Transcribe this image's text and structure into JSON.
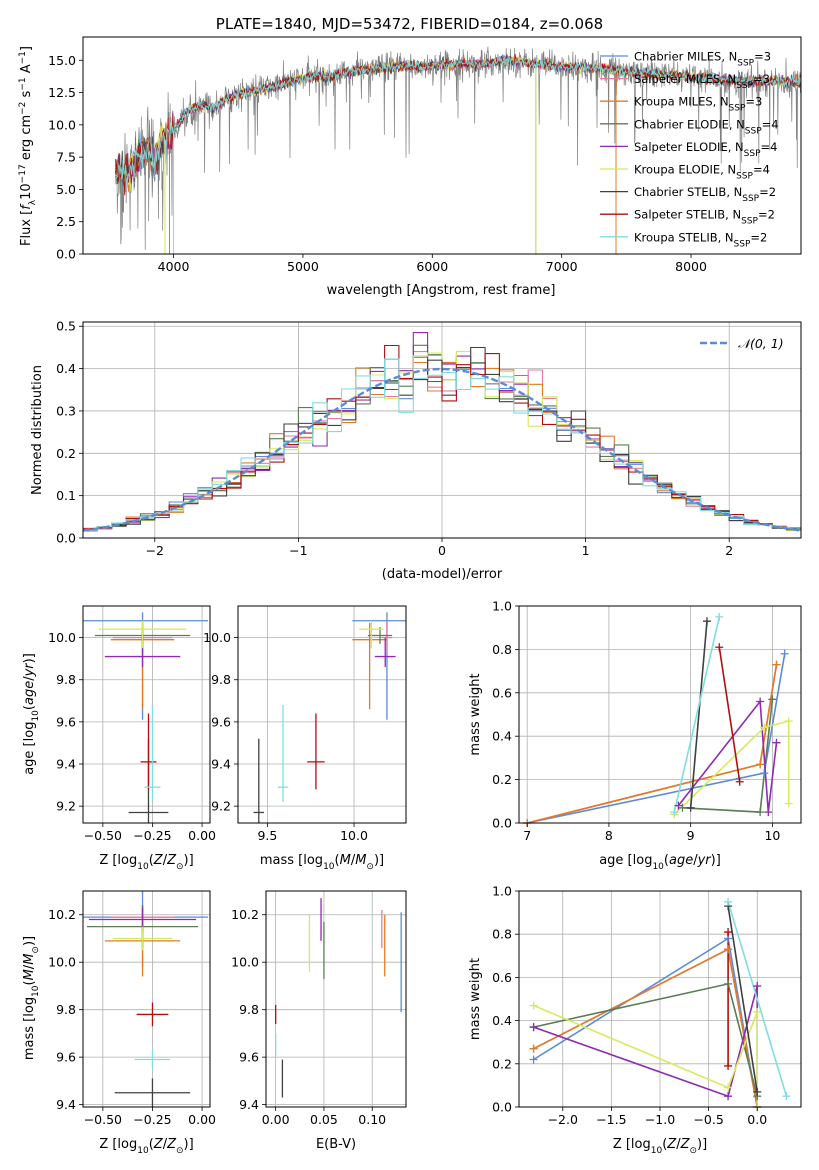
{
  "figure_title": "PLATE=1840, MJD=53472, FIBERID=0184, z=0.068",
  "series_colors": {
    "chabrier_miles": "#5b8bd6",
    "salpeter_miles": "#e879a0",
    "kroupa_miles": "#e07b28",
    "chabrier_elodie": "#5a7d55",
    "salpeter_elodie": "#8e2bb0",
    "kroupa_elodie": "#d4ec5c",
    "chabrier_stelib": "#404040",
    "salpeter_stelib": "#b10e0e",
    "kroupa_stelib": "#7fdde0",
    "observed": "#808080"
  },
  "chart_data": [
    {
      "id": "spectrum",
      "type": "line",
      "xlabel": "wavelength [Angstrom, rest frame]",
      "ylabel": "Flux [f_λ 10^-17 erg cm^-2 s^-1 A^-1]",
      "xlim": [
        3300,
        8850
      ],
      "ylim": [
        0,
        16.8
      ],
      "xticks": [
        4000,
        5000,
        6000,
        7000,
        8000
      ],
      "yticks": [
        0.0,
        2.5,
        5.0,
        7.5,
        10.0,
        12.5,
        15.0
      ],
      "legend_position": "right",
      "legend": [
        {
          "label": "Chabrier MILES, N_SSP=3",
          "color_key": "chabrier_miles"
        },
        {
          "label": "Salpeter MILES, N_SSP=3",
          "color_key": "salpeter_miles"
        },
        {
          "label": "Kroupa MILES, N_SSP=3",
          "color_key": "kroupa_miles"
        },
        {
          "label": "Chabrier ELODIE, N_SSP=4",
          "color_key": "chabrier_elodie"
        },
        {
          "label": "Salpeter ELODIE, N_SSP=4",
          "color_key": "salpeter_elodie"
        },
        {
          "label": "Kroupa ELODIE, N_SSP=4",
          "color_key": "kroupa_elodie"
        },
        {
          "label": "Chabrier STELIB, N_SSP=2",
          "color_key": "chabrier_stelib"
        },
        {
          "label": "Salpeter STELIB, N_SSP=2",
          "color_key": "salpeter_stelib"
        },
        {
          "label": "Kroupa STELIB, N_SSP=2",
          "color_key": "kroupa_stelib"
        }
      ],
      "continuum": [
        [
          3550,
          6.5
        ],
        [
          3650,
          6.0
        ],
        [
          3750,
          7.8
        ],
        [
          3800,
          8.0
        ],
        [
          3850,
          7.0
        ],
        [
          3900,
          8.5
        ],
        [
          3950,
          9.0
        ],
        [
          4000,
          9.5
        ],
        [
          4100,
          11.0
        ],
        [
          4200,
          11.5
        ],
        [
          4300,
          11.3
        ],
        [
          4400,
          12.0
        ],
        [
          4500,
          12.4
        ],
        [
          4600,
          12.6
        ],
        [
          4700,
          12.8
        ],
        [
          4800,
          13.0
        ],
        [
          4900,
          13.4
        ],
        [
          5000,
          13.6
        ],
        [
          5100,
          13.8
        ],
        [
          5200,
          13.7
        ],
        [
          5300,
          14.0
        ],
        [
          5400,
          14.2
        ],
        [
          5500,
          14.3
        ],
        [
          5600,
          14.4
        ],
        [
          5700,
          14.5
        ],
        [
          5800,
          14.6
        ],
        [
          5900,
          14.5
        ],
        [
          6000,
          14.6
        ],
        [
          6200,
          14.7
        ],
        [
          6400,
          14.7
        ],
        [
          6563,
          15.0
        ],
        [
          6700,
          14.8
        ],
        [
          7000,
          14.5
        ],
        [
          7200,
          14.4
        ],
        [
          7400,
          14.3
        ],
        [
          7600,
          14.0
        ],
        [
          7800,
          13.8
        ],
        [
          8000,
          13.7
        ],
        [
          8200,
          13.5
        ],
        [
          8400,
          13.4
        ],
        [
          8850,
          13.3
        ]
      ],
      "observed_dips": [
        [
          3934,
          0
        ],
        [
          3969,
          0
        ],
        [
          6800,
          0
        ],
        [
          7420,
          0
        ]
      ]
    },
    {
      "id": "residual_hist",
      "type": "bar",
      "xlabel": "(data-model)/error",
      "ylabel": "Normed distribution",
      "xlim": [
        -2.5,
        2.5
      ],
      "ylim": [
        0,
        0.51
      ],
      "xticks": [
        -2,
        -1,
        0,
        1,
        2
      ],
      "yticks": [
        0.0,
        0.1,
        0.2,
        0.3,
        0.4,
        0.5
      ],
      "bin_width": 0.1,
      "legend_position": "top-right",
      "legend_label": "𝒩(0, 1)",
      "reference_curve": "gaussian mean 0 sigma 1",
      "series_peaks": {
        "salpeter_elodie": 0.485,
        "salpeter_miles": 0.44,
        "chabrier_elodie": 0.455,
        "kroupa_elodie": 0.43
      }
    },
    {
      "id": "age_vs_Z",
      "type": "scatter",
      "xlabel": "Z [log10(Z/Z_⊙)]",
      "ylabel": "age  [log10(age/yr)]",
      "xlim": [
        -0.6,
        0.04
      ],
      "ylim": [
        9.12,
        10.15
      ],
      "xticks": [
        -0.5,
        -0.25,
        0.0
      ],
      "xticklabels": [
        "−0.50",
        "−0.25",
        "0.00"
      ],
      "yticks": [
        9.2,
        9.4,
        9.6,
        9.8,
        10.0
      ],
      "points": [
        {
          "key": "chabrier_miles",
          "x": -0.3,
          "y": 10.08,
          "xerr": 0.33,
          "yerr": [
            0.47,
            0.04
          ]
        },
        {
          "key": "salpeter_miles",
          "x": -0.3,
          "y": 10.0,
          "xerr": 0.15,
          "yerr": [
            0.07,
            0.08
          ]
        },
        {
          "key": "kroupa_miles",
          "x": -0.3,
          "y": 9.99,
          "xerr": 0.16,
          "yerr": [
            0.33,
            0.08
          ]
        },
        {
          "key": "chabrier_elodie",
          "x": -0.3,
          "y": 10.01,
          "xerr": 0.24,
          "yerr": [
            0.04,
            0.04
          ]
        },
        {
          "key": "salpeter_elodie",
          "x": -0.3,
          "y": 9.91,
          "xerr": 0.19,
          "yerr": [
            0.05,
            0.09
          ]
        },
        {
          "key": "kroupa_elodie",
          "x": -0.3,
          "y": 10.04,
          "xerr": 0.22,
          "yerr": [
            0.09,
            0.04
          ]
        },
        {
          "key": "chabrier_stelib",
          "x": -0.27,
          "y": 9.17,
          "xerr": 0.1,
          "yerr": [
            0.05,
            0.35
          ]
        },
        {
          "key": "salpeter_stelib",
          "x": -0.27,
          "y": 9.41,
          "xerr": 0.04,
          "yerr": [
            0.13,
            0.23
          ]
        },
        {
          "key": "kroupa_stelib",
          "x": -0.25,
          "y": 9.29,
          "xerr": 0.04,
          "yerr": [
            0.07,
            0.39
          ]
        }
      ]
    },
    {
      "id": "age_vs_mass",
      "type": "scatter",
      "xlabel": "mass [log10(M/M_⊙)]",
      "xlim": [
        9.33,
        10.3
      ],
      "ylim": [
        9.12,
        10.15
      ],
      "xticks": [
        9.5,
        10.0
      ],
      "xticklabels": [
        "9.5",
        "10.0"
      ],
      "yticks": [
        9.2,
        9.4,
        9.6,
        9.8,
        10.0
      ],
      "points": [
        {
          "key": "chabrier_miles",
          "x": 10.19,
          "y": 10.08,
          "xerr": 0.2,
          "yerr": [
            0.47,
            0.04
          ]
        },
        {
          "key": "salpeter_miles",
          "x": 10.19,
          "y": 10.0,
          "xerr": 0.03,
          "yerr": [
            0.07,
            0.08
          ]
        },
        {
          "key": "kroupa_miles",
          "x": 10.09,
          "y": 9.99,
          "xerr": 0.1,
          "yerr": [
            0.33,
            0.08
          ]
        },
        {
          "key": "chabrier_elodie",
          "x": 10.15,
          "y": 10.01,
          "xerr": 0.07,
          "yerr": [
            0.04,
            0.04
          ]
        },
        {
          "key": "salpeter_elodie",
          "x": 10.18,
          "y": 9.91,
          "xerr": 0.06,
          "yerr": [
            0.05,
            0.09
          ]
        },
        {
          "key": "kroupa_elodie",
          "x": 10.1,
          "y": 10.04,
          "xerr": 0.07,
          "yerr": [
            0.09,
            0.04
          ]
        },
        {
          "key": "chabrier_stelib",
          "x": 9.45,
          "y": 9.17,
          "xerr": 0.03,
          "yerr": [
            0.05,
            0.35
          ]
        },
        {
          "key": "salpeter_stelib",
          "x": 9.78,
          "y": 9.41,
          "xerr": 0.05,
          "yerr": [
            0.13,
            0.23
          ]
        },
        {
          "key": "kroupa_stelib",
          "x": 9.59,
          "y": 9.29,
          "xerr": 0.03,
          "yerr": [
            0.07,
            0.39
          ]
        }
      ]
    },
    {
      "id": "weight_vs_age",
      "type": "line",
      "xlabel": "age  [log10(age/yr)]",
      "ylabel": "mass weight",
      "xlim": [
        6.9,
        10.35
      ],
      "ylim": [
        0,
        1.0
      ],
      "xticks": [
        7,
        8,
        9,
        10
      ],
      "yticks": [
        0.0,
        0.2,
        0.4,
        0.6,
        0.8,
        1.0
      ],
      "series": [
        {
          "key": "chabrier_miles",
          "points": [
            [
              7.0,
              0.0
            ],
            [
              9.9,
              0.23
            ],
            [
              10.15,
              0.78
            ]
          ]
        },
        {
          "key": "salpeter_miles",
          "points": [
            [
              7.0,
              0.0
            ],
            [
              9.85,
              0.27
            ],
            [
              10.05,
              0.73
            ]
          ]
        },
        {
          "key": "kroupa_miles",
          "points": [
            [
              7.0,
              0.0
            ],
            [
              9.85,
              0.27
            ],
            [
              10.05,
              0.73
            ]
          ]
        },
        {
          "key": "chabrier_elodie",
          "points": [
            [
              8.9,
              0.07
            ],
            [
              9.85,
              0.05
            ],
            [
              10.0,
              0.57
            ]
          ]
        },
        {
          "key": "salpeter_elodie",
          "points": [
            [
              8.85,
              0.08
            ],
            [
              9.85,
              0.56
            ],
            [
              9.95,
              0.05
            ],
            [
              10.05,
              0.37
            ]
          ]
        },
        {
          "key": "kroupa_elodie",
          "points": [
            [
              8.8,
              0.04
            ],
            [
              9.9,
              0.44
            ],
            [
              10.2,
              0.47
            ],
            [
              10.2,
              0.09
            ]
          ]
        },
        {
          "key": "chabrier_stelib",
          "points": [
            [
              9.0,
              0.07
            ],
            [
              9.2,
              0.93
            ]
          ]
        },
        {
          "key": "salpeter_stelib",
          "points": [
            [
              9.35,
              0.81
            ],
            [
              9.6,
              0.19
            ]
          ]
        },
        {
          "key": "kroupa_stelib",
          "points": [
            [
              8.8,
              0.05
            ],
            [
              9.35,
              0.95
            ]
          ]
        }
      ]
    },
    {
      "id": "mass_vs_Z",
      "type": "scatter",
      "xlabel": "Z [log10(Z/Z_⊙)]",
      "ylabel": "mass [log10(M/M_⊙)]",
      "xlim": [
        -0.6,
        0.04
      ],
      "ylim": [
        9.39,
        10.3
      ],
      "xticks": [
        -0.5,
        -0.25,
        0.0
      ],
      "xticklabels": [
        "−0.50",
        "−0.25",
        "0.00"
      ],
      "yticks": [
        9.4,
        9.6,
        9.8,
        10.0,
        10.2
      ],
      "points": [
        {
          "key": "chabrier_miles",
          "x": -0.3,
          "y": 10.19,
          "xerr": 0.33,
          "yerr": 0.21
        },
        {
          "key": "salpeter_miles",
          "x": -0.3,
          "y": 10.19,
          "xerr": 0.16,
          "yerr": 0.05
        },
        {
          "key": "kroupa_miles",
          "x": -0.3,
          "y": 10.09,
          "xerr": 0.19,
          "yerr": 0.15
        },
        {
          "key": "chabrier_elodie",
          "x": -0.3,
          "y": 10.15,
          "xerr": 0.28,
          "yerr": 0.09
        },
        {
          "key": "salpeter_elodie",
          "x": -0.3,
          "y": 10.18,
          "xerr": 0.27,
          "yerr": 0.05
        },
        {
          "key": "kroupa_elodie",
          "x": -0.3,
          "y": 10.1,
          "xerr": 0.15,
          "yerr": 0.05
        },
        {
          "key": "chabrier_stelib",
          "x": -0.25,
          "y": 9.45,
          "xerr": 0.19,
          "yerr": 0.06
        },
        {
          "key": "salpeter_stelib",
          "x": -0.25,
          "y": 9.78,
          "xerr": 0.08,
          "yerr": 0.05
        },
        {
          "key": "kroupa_stelib",
          "x": -0.25,
          "y": 9.59,
          "xerr": 0.09,
          "yerr": 0.04
        }
      ]
    },
    {
      "id": "mass_vs_ebv",
      "type": "scatter",
      "xlabel": "E(B-V)",
      "xlim": [
        -0.01,
        0.135
      ],
      "ylim": [
        9.39,
        10.3
      ],
      "xticks": [
        0.0,
        0.05,
        0.1
      ],
      "xticklabels": [
        "0.00",
        "0.05",
        "0.10"
      ],
      "yticks": [
        9.4,
        9.6,
        9.8,
        10.0,
        10.2
      ],
      "points": [
        {
          "key": "chabrier_miles",
          "x": 0.13,
          "y": 10.0,
          "yerr": 0.21
        },
        {
          "key": "salpeter_miles",
          "x": 0.11,
          "y": 10.14,
          "yerr": 0.08
        },
        {
          "key": "kroupa_miles",
          "x": 0.113,
          "y": 10.07,
          "yerr": 0.13
        },
        {
          "key": "chabrier_elodie",
          "x": 0.05,
          "y": 10.05,
          "yerr": 0.12
        },
        {
          "key": "salpeter_elodie",
          "x": 0.047,
          "y": 10.18,
          "yerr": 0.09
        },
        {
          "key": "kroupa_elodie",
          "x": 0.035,
          "y": 10.08,
          "yerr": 0.12
        },
        {
          "key": "chabrier_stelib",
          "x": 0.007,
          "y": 9.51,
          "yerr": 0.08
        },
        {
          "key": "salpeter_stelib",
          "x": 0.0,
          "y": 9.78,
          "yerr": 0.04
        },
        {
          "key": "kroupa_stelib",
          "x": 0.0,
          "y": 9.65,
          "yerr": 0.05
        }
      ]
    },
    {
      "id": "weight_vs_Z",
      "type": "line",
      "xlabel": "Z [log10(Z/Z_⊙)]",
      "ylabel": "mass weight",
      "xlim": [
        -2.45,
        0.45
      ],
      "ylim": [
        0,
        1.0
      ],
      "xticks": [
        -2.0,
        -1.5,
        -1.0,
        -0.5,
        0.0
      ],
      "xticklabels": [
        "−2.0",
        "−1.5",
        "−1.0",
        "−0.5",
        "0.0"
      ],
      "yticks": [
        0.0,
        0.2,
        0.4,
        0.6,
        0.8,
        1.0
      ],
      "series": [
        {
          "key": "chabrier_miles",
          "points": [
            [
              -2.3,
              0.22
            ],
            [
              -0.3,
              0.78
            ],
            [
              0.0,
              0.0
            ]
          ]
        },
        {
          "key": "salpeter_miles",
          "points": [
            [
              -2.3,
              0.27
            ],
            [
              -0.3,
              0.73
            ],
            [
              0.0,
              0.0
            ]
          ]
        },
        {
          "key": "kroupa_miles",
          "points": [
            [
              -2.3,
              0.27
            ],
            [
              -0.3,
              0.73
            ],
            [
              0.0,
              0.0
            ]
          ]
        },
        {
          "key": "chabrier_elodie",
          "points": [
            [
              -2.3,
              0.37
            ],
            [
              -0.3,
              0.57
            ],
            [
              0.0,
              0.05
            ]
          ]
        },
        {
          "key": "salpeter_elodie",
          "points": [
            [
              -2.3,
              0.37
            ],
            [
              -0.3,
              0.05
            ],
            [
              0.0,
              0.56
            ],
            [
              0.0,
              0.0
            ]
          ]
        },
        {
          "key": "kroupa_elodie",
          "points": [
            [
              -2.3,
              0.47
            ],
            [
              -0.3,
              0.09
            ],
            [
              0.0,
              0.44
            ],
            [
              0.0,
              0.0
            ]
          ]
        },
        {
          "key": "chabrier_stelib",
          "points": [
            [
              -0.3,
              0.93
            ],
            [
              0.0,
              0.07
            ]
          ]
        },
        {
          "key": "salpeter_stelib",
          "points": [
            [
              -0.3,
              0.81
            ],
            [
              -0.3,
              0.19
            ]
          ]
        },
        {
          "key": "kroupa_stelib",
          "points": [
            [
              -0.3,
              0.95
            ],
            [
              0.3,
              0.05
            ]
          ]
        }
      ]
    }
  ]
}
